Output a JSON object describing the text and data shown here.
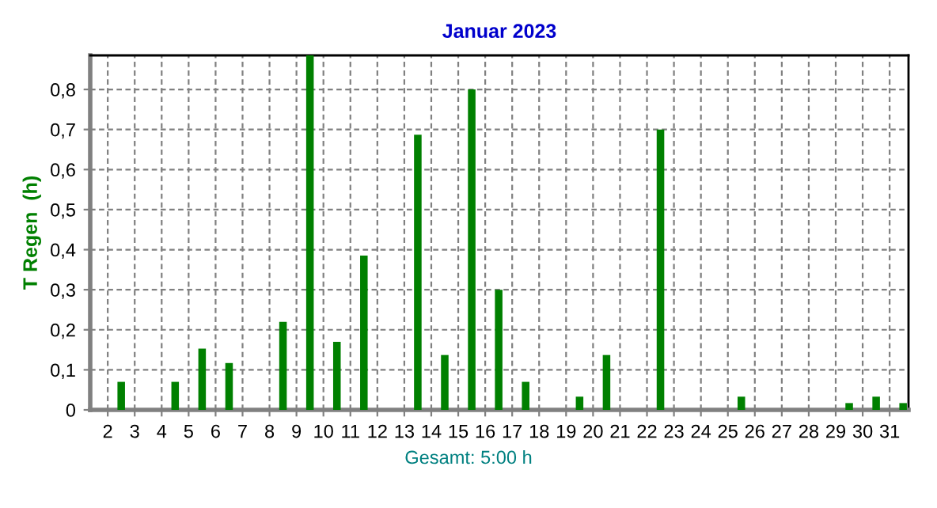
{
  "chart_data": {
    "type": "bar",
    "title": "Januar 2023",
    "ylabel": "T Regen  (h)",
    "x": [
      1.5,
      2.5,
      3.5,
      4.5,
      5.5,
      6.5,
      7.5,
      8.5,
      9.5,
      10.5,
      11.5,
      12.5,
      13.5,
      14.5,
      15.5,
      16.5,
      17.5,
      18.5,
      19.5,
      20.5,
      21.5,
      22.5,
      23.5,
      24.5,
      25.5,
      26.5,
      27.5,
      28.5,
      29.5,
      30.5,
      31.5
    ],
    "values": [
      0,
      0.07,
      0,
      0.07,
      0.153,
      0.117,
      0,
      0.22,
      0.885,
      0.17,
      0.385,
      0,
      0.687,
      0.137,
      0.8,
      0.3,
      0.07,
      0,
      0.033,
      0.137,
      0,
      0.7,
      0,
      0,
      0.033,
      0,
      0,
      0,
      0.017,
      0.033,
      0.017
    ],
    "color": "#008000",
    "xlim": [
      1.35,
      31.7
    ],
    "xticks": [
      2,
      3,
      4,
      5,
      6,
      7,
      8,
      9,
      10,
      11,
      12,
      13,
      14,
      15,
      16,
      17,
      18,
      19,
      20,
      21,
      22,
      23,
      24,
      25,
      26,
      27,
      28,
      29,
      30,
      31
    ],
    "ylim": [
      0,
      0.885
    ],
    "yticks": [
      {
        "value": 0,
        "label": "0"
      },
      {
        "value": 0.1,
        "label": "0,1"
      },
      {
        "value": 0.2,
        "label": "0,2"
      },
      {
        "value": 0.3,
        "label": "0,3"
      },
      {
        "value": 0.4,
        "label": "0,4"
      },
      {
        "value": 0.5,
        "label": "0,5"
      },
      {
        "value": 0.6,
        "label": "0,6"
      },
      {
        "value": 0.7,
        "label": "0,7"
      },
      {
        "value": 0.8,
        "label": "0,8"
      }
    ],
    "grid": true,
    "legend": false,
    "annotations": [
      "Gesamt: 5:00 h"
    ]
  }
}
